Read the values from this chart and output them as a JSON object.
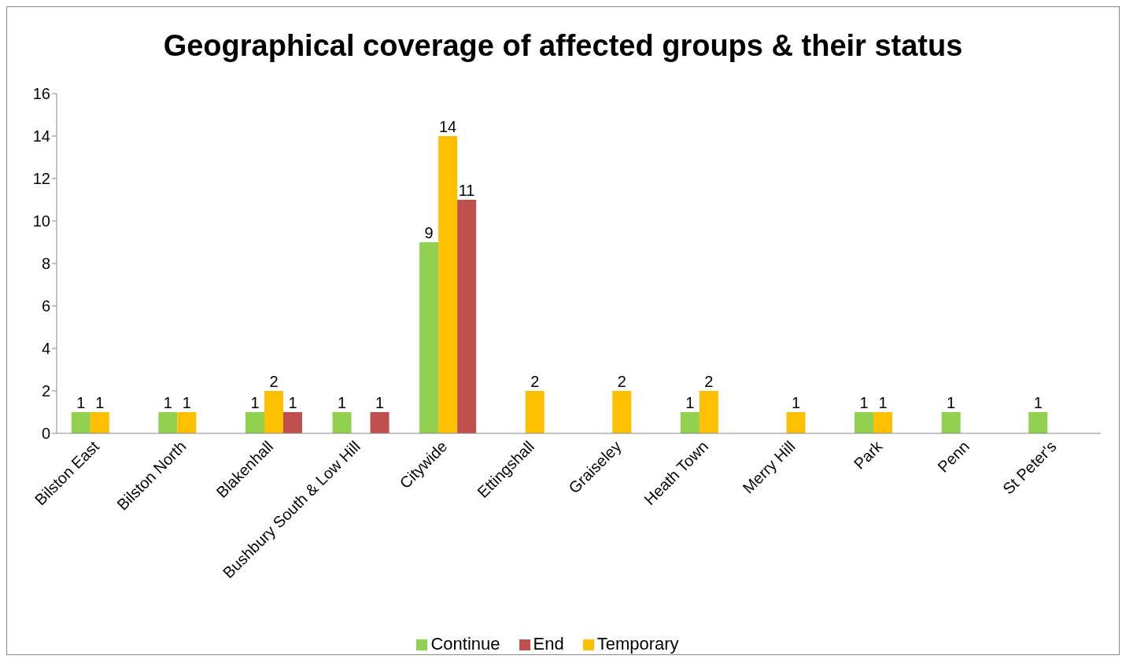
{
  "chart_data": {
    "type": "bar",
    "title": "Geographical coverage of affected groups & their status",
    "categories": [
      "Bilston East",
      "Bilston North",
      "Blakenhall",
      "Bushbury South & Low Hill",
      "Citywide",
      "Ettingshall",
      "Graiseley",
      "Heath Town",
      "Merry Hill",
      "Park",
      "Penn",
      "St Peter's"
    ],
    "series": [
      {
        "name": "Continue",
        "color": "#92d050",
        "values": [
          1,
          1,
          1,
          1,
          9,
          null,
          null,
          1,
          null,
          1,
          1,
          1
        ]
      },
      {
        "name": "Temporary",
        "color": "#ffc000",
        "values": [
          1,
          1,
          2,
          null,
          14,
          2,
          2,
          2,
          1,
          1,
          null,
          null
        ]
      },
      {
        "name": "End",
        "color": "#c0504d",
        "values": [
          null,
          null,
          1,
          1,
          11,
          null,
          null,
          null,
          null,
          null,
          null,
          null
        ]
      }
    ],
    "ylim": [
      0,
      16
    ],
    "yticks": [
      0,
      2,
      4,
      6,
      8,
      10,
      12,
      14,
      16
    ],
    "grid": false,
    "legend": "bottom",
    "data_labels": true
  }
}
